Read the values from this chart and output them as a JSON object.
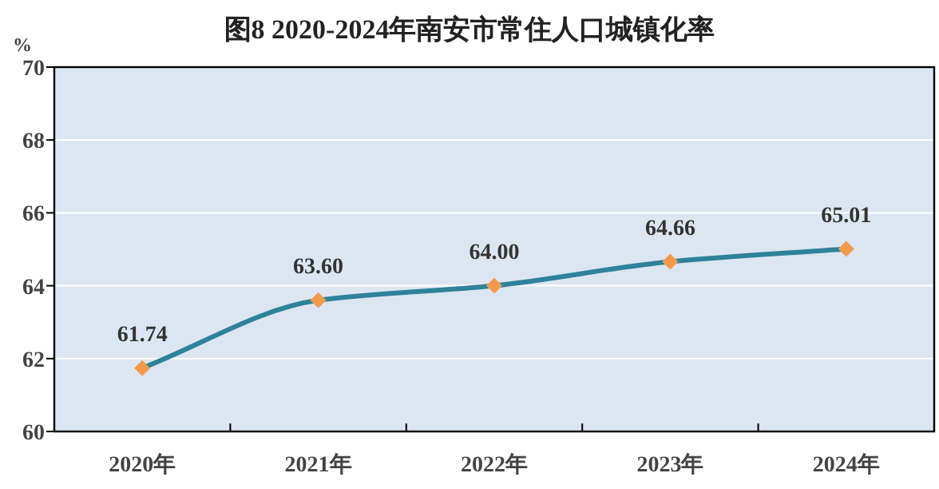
{
  "chart_data": {
    "type": "line",
    "title": "图8  2020-2024年南安市常住人口城镇化率",
    "ylabel": "%",
    "categories": [
      "2020年",
      "2021年",
      "2022年",
      "2023年",
      "2024年"
    ],
    "series": [
      {
        "color": "#2e8299",
        "values": [
          61.74,
          63.6,
          64.0,
          64.66,
          65.01
        ],
        "value_labels": [
          "61.74",
          "63.60",
          "64.00",
          "64.66",
          "65.01"
        ]
      }
    ],
    "ylim": [
      60,
      70
    ],
    "yticks": [
      60,
      62,
      64,
      66,
      68,
      70
    ],
    "grid": "y",
    "marker": "diamond",
    "line_style": "solid"
  }
}
